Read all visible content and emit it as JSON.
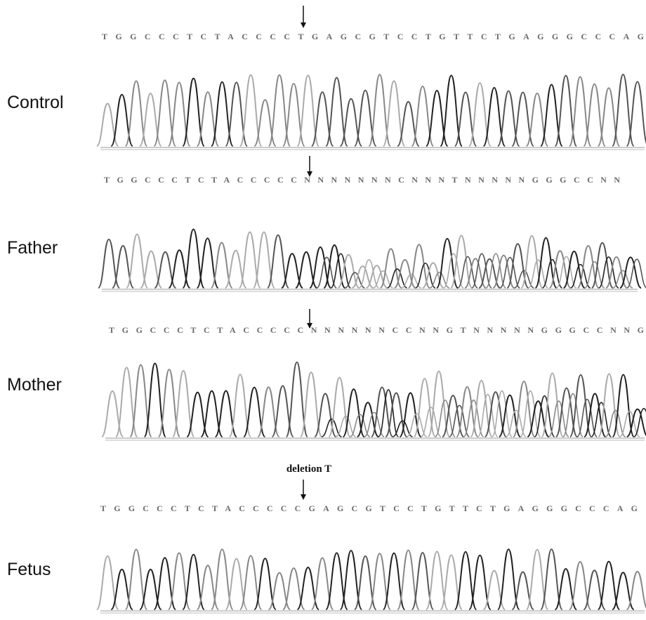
{
  "annotation": "deletion T",
  "panels": [
    {
      "label": "Control",
      "sequence": "TGGCCCTCTACCCCTGAGCGTCCTGTTCTGAGGGCCCAG"
    },
    {
      "label": "Father",
      "sequence": "TGGCCCTCTACCCCCNNNNNNNCNNNTNNNNNGGGCCNN"
    },
    {
      "label": "Mother",
      "sequence": "TGGCCCTCTACCCCCNNNNNNCCNNGTNNNNNGGGCCNNG"
    },
    {
      "label": "Fetus",
      "sequence": "TGGCCCTCTACCCCCGAGCGTCCTGTTCTGAGGGCCCAG"
    }
  ]
}
